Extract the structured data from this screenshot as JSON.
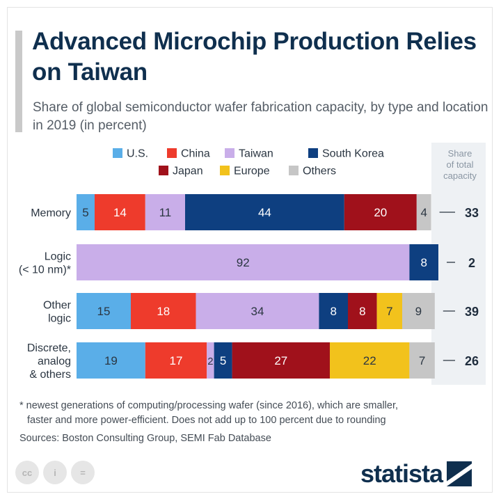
{
  "title": "Advanced Microchip Production Relies on Taiwan",
  "subtitle": "Share of global semiconductor wafer fabrication capacity, by type and location in 2019 (in percent)",
  "footnote_line1": "* newest generations of computing/processing wafer (since 2016), which are smaller,",
  "footnote_line2": "faster and more power-efficient. Does not add up to 100 percent due to rounding",
  "sources": "Sources: Boston Consulting Group, SEMI Fab Database",
  "logo_text": "statista",
  "license_icons": [
    "cc",
    "i",
    "="
  ],
  "chart_data": {
    "type": "bar",
    "orientation": "horizontal",
    "stacked": true,
    "legend_placement": "top",
    "share_header": [
      "Share",
      "of total",
      "capacity"
    ],
    "categories": [
      [
        "Memory"
      ],
      [
        "Logic",
        "(< 10 nm)*"
      ],
      [
        "Other",
        "logic"
      ],
      [
        "Discrete,",
        "analog",
        "& others"
      ]
    ],
    "series": [
      {
        "name": "U.S.",
        "color": "#5aaee8",
        "values": [
          5,
          0,
          15,
          19
        ]
      },
      {
        "name": "China",
        "color": "#ee3b2c",
        "values": [
          14,
          0,
          18,
          17
        ]
      },
      {
        "name": "Taiwan",
        "color": "#c9aee9",
        "values": [
          11,
          92,
          34,
          2
        ]
      },
      {
        "name": "South Korea",
        "color": "#0e3f80",
        "values": [
          44,
          8,
          8,
          5
        ]
      },
      {
        "name": "Japan",
        "color": "#a0111b",
        "values": [
          20,
          0,
          8,
          27
        ]
      },
      {
        "name": "Europe",
        "color": "#f2c21c",
        "values": [
          0,
          0,
          7,
          22
        ]
      },
      {
        "name": "Others",
        "color": "#c6c6c6",
        "values": [
          4,
          0,
          9,
          7
        ]
      }
    ],
    "share_of_total": [
      33,
      2,
      39,
      26
    ]
  }
}
